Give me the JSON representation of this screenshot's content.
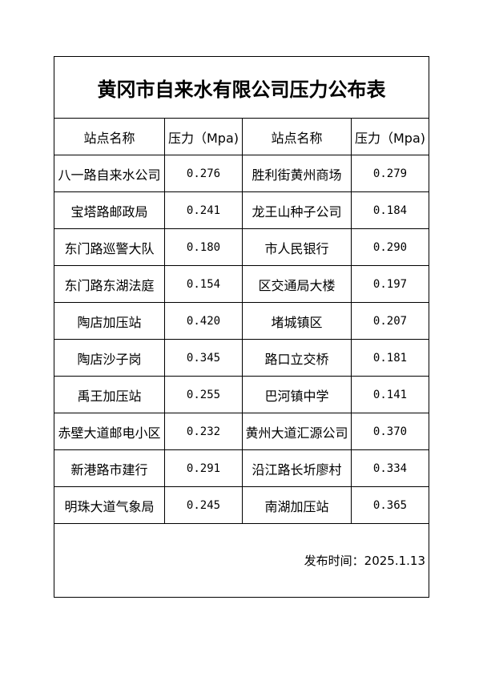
{
  "title": "黄冈市自来水有限公司压力公布表",
  "headers": [
    "站点名称",
    "压力（Mpa)",
    "站点名称",
    "压力（Mpa)"
  ],
  "rows": [
    [
      "八一路自来水公司",
      "0.276",
      "胜利街黄州商场",
      "0.279"
    ],
    [
      "宝塔路邮政局",
      "0.241",
      "龙王山种子公司",
      "0.184"
    ],
    [
      "东门路巡警大队",
      "0.180",
      "市人民银行",
      "0.290"
    ],
    [
      "东门路东湖法庭",
      "0.154",
      "区交通局大楼",
      "0.197"
    ],
    [
      "陶店加压站",
      "0.420",
      "堵城镇区",
      "0.207"
    ],
    [
      "陶店沙子岗",
      "0.345",
      "路口立交桥",
      "0.181"
    ],
    [
      "禹王加压站",
      "0.255",
      "巴河镇中学",
      "0.141"
    ],
    [
      "赤壁大道邮电小区",
      "0.232",
      "黄州大道汇源公司",
      "0.370"
    ],
    [
      "新港路市建行",
      "0.291",
      "沿江路长圻廖村",
      "0.334"
    ],
    [
      "明珠大道气象局",
      "0.245",
      "南湖加压站",
      "0.365"
    ]
  ],
  "footer": "发布时间：2025.1.13"
}
